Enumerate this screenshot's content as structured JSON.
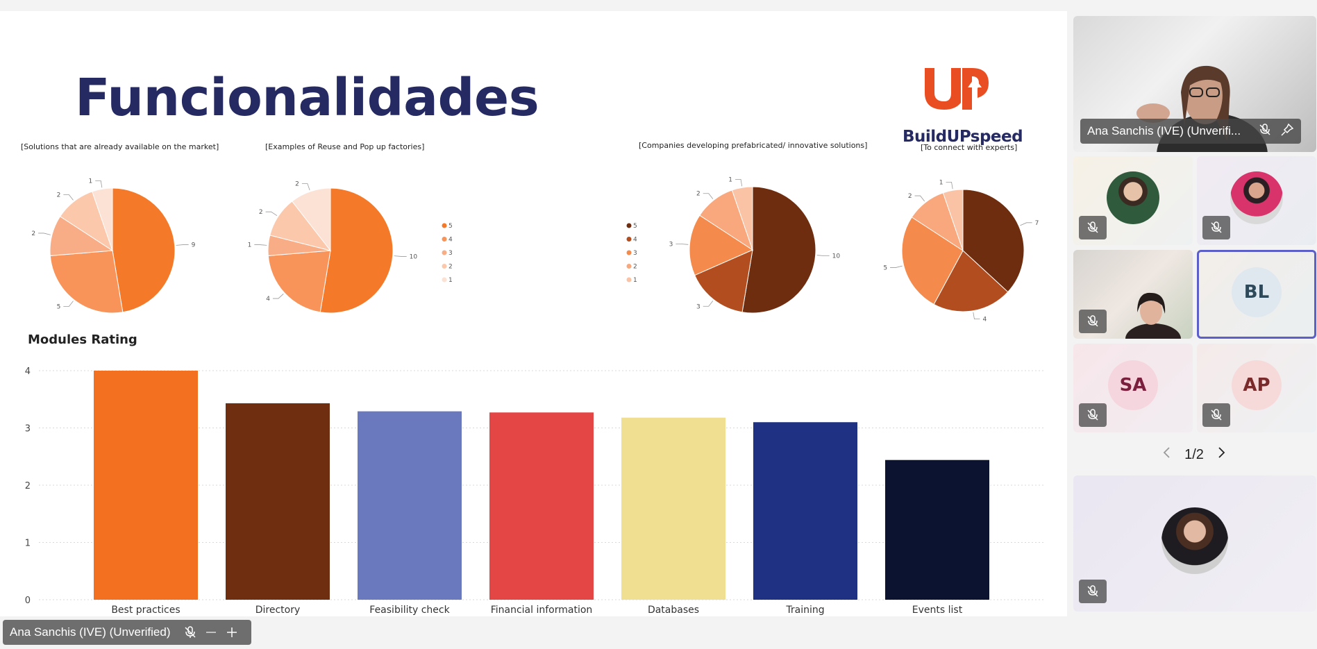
{
  "slide": {
    "title": "Funcionalidades",
    "logo_text": "BuildUPspeed"
  },
  "chart_data": [
    {
      "type": "pie",
      "title": "[Solutions that are already available on the market]",
      "series": [
        {
          "name": "5",
          "value": 9
        },
        {
          "name": "4",
          "value": 5
        },
        {
          "name": "3",
          "value": 2
        },
        {
          "name": "2",
          "value": 2
        },
        {
          "name": "1",
          "value": 1
        }
      ],
      "colors": [
        "#f47a2a",
        "#f8945a",
        "#f9ad86",
        "#fbc8ac",
        "#fbe2d4"
      ]
    },
    {
      "type": "pie",
      "title": "[Examples of Reuse and Pop up factories]",
      "series": [
        {
          "name": "5",
          "value": 10
        },
        {
          "name": "4",
          "value": 4
        },
        {
          "name": "3",
          "value": 1
        },
        {
          "name": "2",
          "value": 2
        },
        {
          "name": "1",
          "value": 2
        }
      ],
      "colors": [
        "#f47a2a",
        "#f8945a",
        "#f9ad86",
        "#fbc8ac",
        "#fbe2d4"
      ],
      "legend": {
        "position": "right",
        "entries": [
          "5",
          "4",
          "3",
          "2",
          "1"
        ]
      }
    },
    {
      "type": "pie",
      "title": "[Companies developing prefabricated/ innovative solutions]",
      "series": [
        {
          "name": "5",
          "value": 10
        },
        {
          "name": "4",
          "value": 3
        },
        {
          "name": "3",
          "value": 3
        },
        {
          "name": "2",
          "value": 2
        },
        {
          "name": "1",
          "value": 1
        }
      ],
      "colors": [
        "#6f2d10",
        "#b24d1f",
        "#f58a4d",
        "#f8a87c",
        "#fac3a6"
      ],
      "legend": {
        "position": "left",
        "entries": [
          "5",
          "4",
          "3",
          "2",
          "1"
        ]
      }
    },
    {
      "type": "pie",
      "title": "[To connect with experts]",
      "series": [
        {
          "name": "5",
          "value": 7
        },
        {
          "name": "4",
          "value": 4
        },
        {
          "name": "3",
          "value": 5
        },
        {
          "name": "2",
          "value": 2
        },
        {
          "name": "1",
          "value": 1
        }
      ],
      "colors": [
        "#6f2d10",
        "#b24d1f",
        "#f58a4d",
        "#f8a87c",
        "#fac3a6"
      ]
    },
    {
      "type": "bar",
      "title": "Modules Rating",
      "categories": [
        "Best practices",
        "Directory",
        "Feasibility check",
        "Financial information",
        "Databases",
        "Training",
        "Events list"
      ],
      "values": [
        4.0,
        3.43,
        3.29,
        3.27,
        3.18,
        3.1,
        2.44
      ],
      "colors": [
        "#f37021",
        "#6e2e0f",
        "#6a78bd",
        "#e34645",
        "#f0df90",
        "#1f3182",
        "#0c1330"
      ],
      "ylim": [
        0,
        4
      ],
      "yticks": [
        0,
        1,
        2,
        3,
        4
      ],
      "grid": true
    }
  ],
  "presenter_bar": {
    "name": "Ana Sanchis (IVE) (Unverified)"
  },
  "participants": {
    "main": {
      "name": "Ana Sanchis (IVE) (Unverifi..."
    },
    "initials": [
      "BL",
      "SA",
      "AP"
    ],
    "pager": {
      "text": "1/2"
    }
  }
}
